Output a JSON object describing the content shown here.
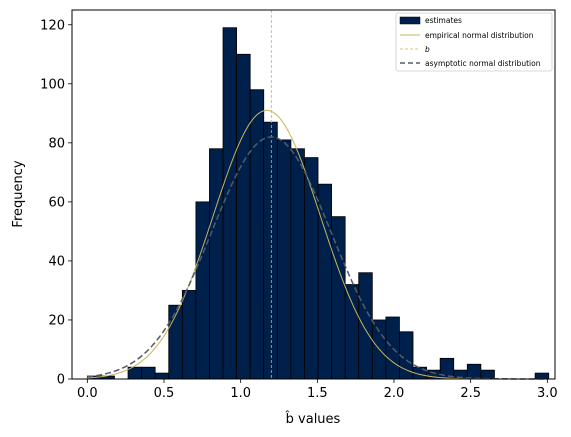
{
  "chart_data": {
    "type": "bar",
    "xlabel": "b̂ values",
    "ylabel": "Frequency",
    "xlim": [
      -0.1,
      3.05
    ],
    "ylim": [
      0,
      125
    ],
    "xticks": [
      "0.0",
      "0.5",
      "1.0",
      "1.5",
      "2.0",
      "2.5",
      "3.0"
    ],
    "yticks": [
      "0",
      "20",
      "40",
      "60",
      "80",
      "100",
      "120"
    ],
    "bin_width": 0.0885,
    "bin_start": 0.0,
    "counts": [
      1,
      1,
      0,
      4,
      4,
      2,
      25,
      30,
      60,
      78,
      119,
      110,
      98,
      87,
      81,
      78,
      75,
      66,
      55,
      32,
      36,
      20,
      21,
      16,
      4,
      3,
      7,
      3,
      5,
      3,
      0,
      0,
      0,
      2
    ],
    "series": [
      {
        "name": "estimates",
        "kind": "histogram",
        "color": "#00204c"
      },
      {
        "name": "empirical normal distribution",
        "kind": "line",
        "mean": 1.17,
        "sd": 0.35,
        "scale": 0.0,
        "peak": 91,
        "color": "#c9b45c"
      },
      {
        "name": "b",
        "kind": "vline",
        "x": 1.2,
        "color": "#c9b45c"
      },
      {
        "name": "asymptotic normal distribution",
        "kind": "dashed-line",
        "mean": 1.2,
        "sd": 0.39,
        "peak": 82,
        "color": "#555a66"
      }
    ],
    "legend_position": "top-right",
    "grid": false
  }
}
